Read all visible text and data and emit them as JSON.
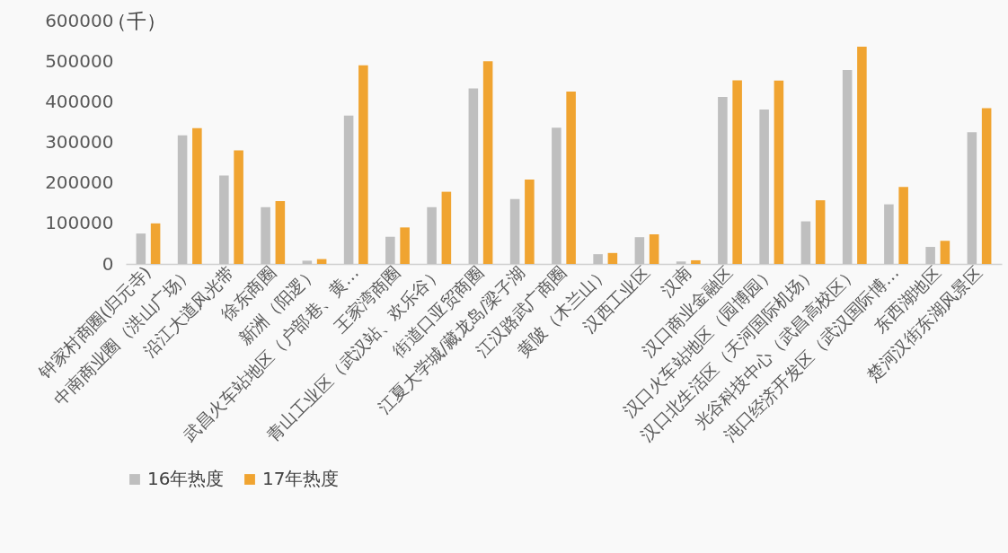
{
  "chart_data": {
    "type": "bar",
    "ylabel": "（千）",
    "categories": [
      "钟家村商圈(归元寺)",
      "中南商业圈（洪山广场）",
      "沿江大道风光带",
      "徐东商圈",
      "新洲（阳逻）",
      "武昌火车站地区（户部巷、黄…",
      "王家湾商圈",
      "青山工业区（武汉站、欢乐谷）",
      "街道口亚贸商圈",
      "江夏大学城/藏龙岛/梁子湖",
      "江汉路武广商圈",
      "黄陂（木兰山）",
      "汉西工业区",
      "汉南",
      "汉口商业金融区",
      "汉口火车站地区（园博园）",
      "汉口北生活区（天河国际机场）",
      "光谷科技中心（武昌高校区）",
      "沌口经济开发区（武汉国际博…",
      "东西湖地区",
      "楚河汉街东湖风景区"
    ],
    "series": [
      {
        "name": "16年热度",
        "color": "#bfbfbf",
        "values": [
          75000,
          317000,
          218000,
          140000,
          8000,
          366000,
          67000,
          140000,
          433000,
          160000,
          336000,
          24000,
          66000,
          6000,
          412000,
          381000,
          105000,
          478000,
          147000,
          42000,
          325000
        ]
      },
      {
        "name": "17年热度",
        "color": "#f0a431",
        "values": [
          100000,
          335000,
          280000,
          155000,
          12000,
          490000,
          90000,
          178000,
          500000,
          208000,
          425000,
          27000,
          73000,
          9000,
          453000,
          452000,
          157000,
          536000,
          190000,
          57000,
          384000
        ]
      }
    ],
    "ylim": [
      0,
      600000
    ],
    "yticks": [
      0,
      100000,
      200000,
      300000,
      400000,
      500000,
      600000
    ],
    "grid": false,
    "legend": "bottom"
  }
}
